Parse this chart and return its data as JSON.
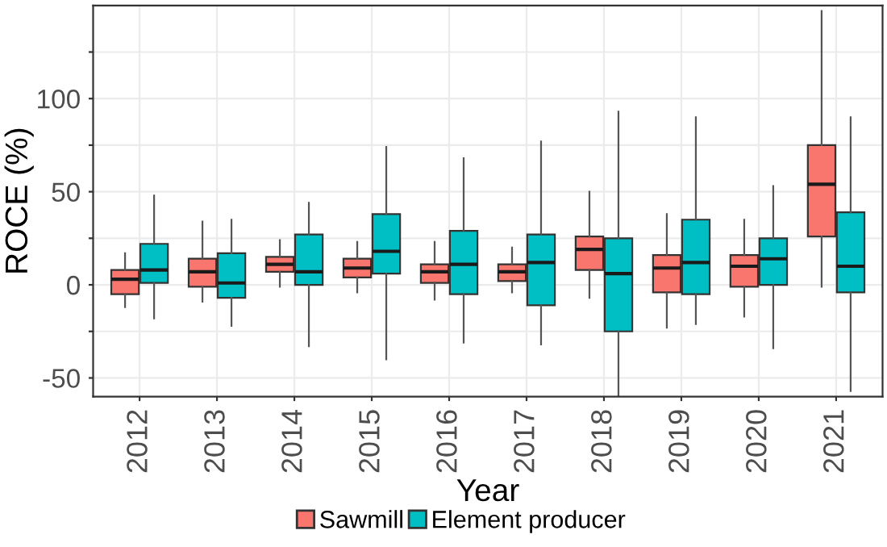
{
  "chart_data": {
    "type": "box",
    "xlabel": "Year",
    "ylabel": "ROCE (%)",
    "categories": [
      "2012",
      "2013",
      "2014",
      "2015",
      "2016",
      "2017",
      "2018",
      "2019",
      "2020",
      "2021"
    ],
    "ylim": [
      -60,
      150
    ],
    "yticks": [
      -50,
      {
        "value": -25,
        "label": null
      },
      0,
      {
        "value": 25,
        "label": null
      },
      50,
      {
        "value": 75,
        "label": null
      },
      100,
      {
        "value": 125,
        "label": null
      }
    ],
    "grid": true,
    "legend": "bottom",
    "series": [
      {
        "name": "Sawmill",
        "color": "#f8766d",
        "boxes": [
          {
            "low": -12,
            "q1": -5,
            "median": 3,
            "q3": 8,
            "high": 17
          },
          {
            "low": -9,
            "q1": -1,
            "median": 7,
            "q3": 14,
            "high": 34
          },
          {
            "low": -1,
            "q1": 7,
            "median": 11,
            "q3": 15,
            "high": 24
          },
          {
            "low": -4,
            "q1": 4,
            "median": 9,
            "q3": 14,
            "high": 23
          },
          {
            "low": -8,
            "q1": 1,
            "median": 7,
            "q3": 11,
            "high": 23
          },
          {
            "low": -4,
            "q1": 2,
            "median": 7,
            "q3": 11,
            "high": 20
          },
          {
            "low": -7,
            "q1": 8,
            "median": 19,
            "q3": 26,
            "high": 50
          },
          {
            "low": -23,
            "q1": -4,
            "median": 9,
            "q3": 16,
            "high": 38
          },
          {
            "low": -17,
            "q1": -1,
            "median": 10,
            "q3": 16,
            "high": 35
          },
          {
            "low": -1,
            "q1": 26,
            "median": 54,
            "q3": 75,
            "high": 147
          }
        ]
      },
      {
        "name": "Element producer",
        "color": "#00bfc4",
        "boxes": [
          {
            "low": -18,
            "q1": 1,
            "median": 8,
            "q3": 22,
            "high": 48
          },
          {
            "low": -22,
            "q1": -7,
            "median": 1,
            "q3": 17,
            "high": 35
          },
          {
            "low": -33,
            "q1": 0,
            "median": 7,
            "q3": 27,
            "high": 44
          },
          {
            "low": -40,
            "q1": 6,
            "median": 18,
            "q3": 38,
            "high": 74
          },
          {
            "low": -31,
            "q1": -5,
            "median": 11,
            "q3": 29,
            "high": 68
          },
          {
            "low": -32,
            "q1": -11,
            "median": 12,
            "q3": 27,
            "high": 77
          },
          {
            "low": -60,
            "q1": -25,
            "median": 6,
            "q3": 25,
            "high": 93
          },
          {
            "low": -21,
            "q1": -5,
            "median": 12,
            "q3": 35,
            "high": 90
          },
          {
            "low": -34,
            "q1": 0,
            "median": 14,
            "q3": 25,
            "high": 53
          },
          {
            "low": -57,
            "q1": -4,
            "median": 10,
            "q3": 39,
            "high": 90
          }
        ]
      }
    ]
  }
}
